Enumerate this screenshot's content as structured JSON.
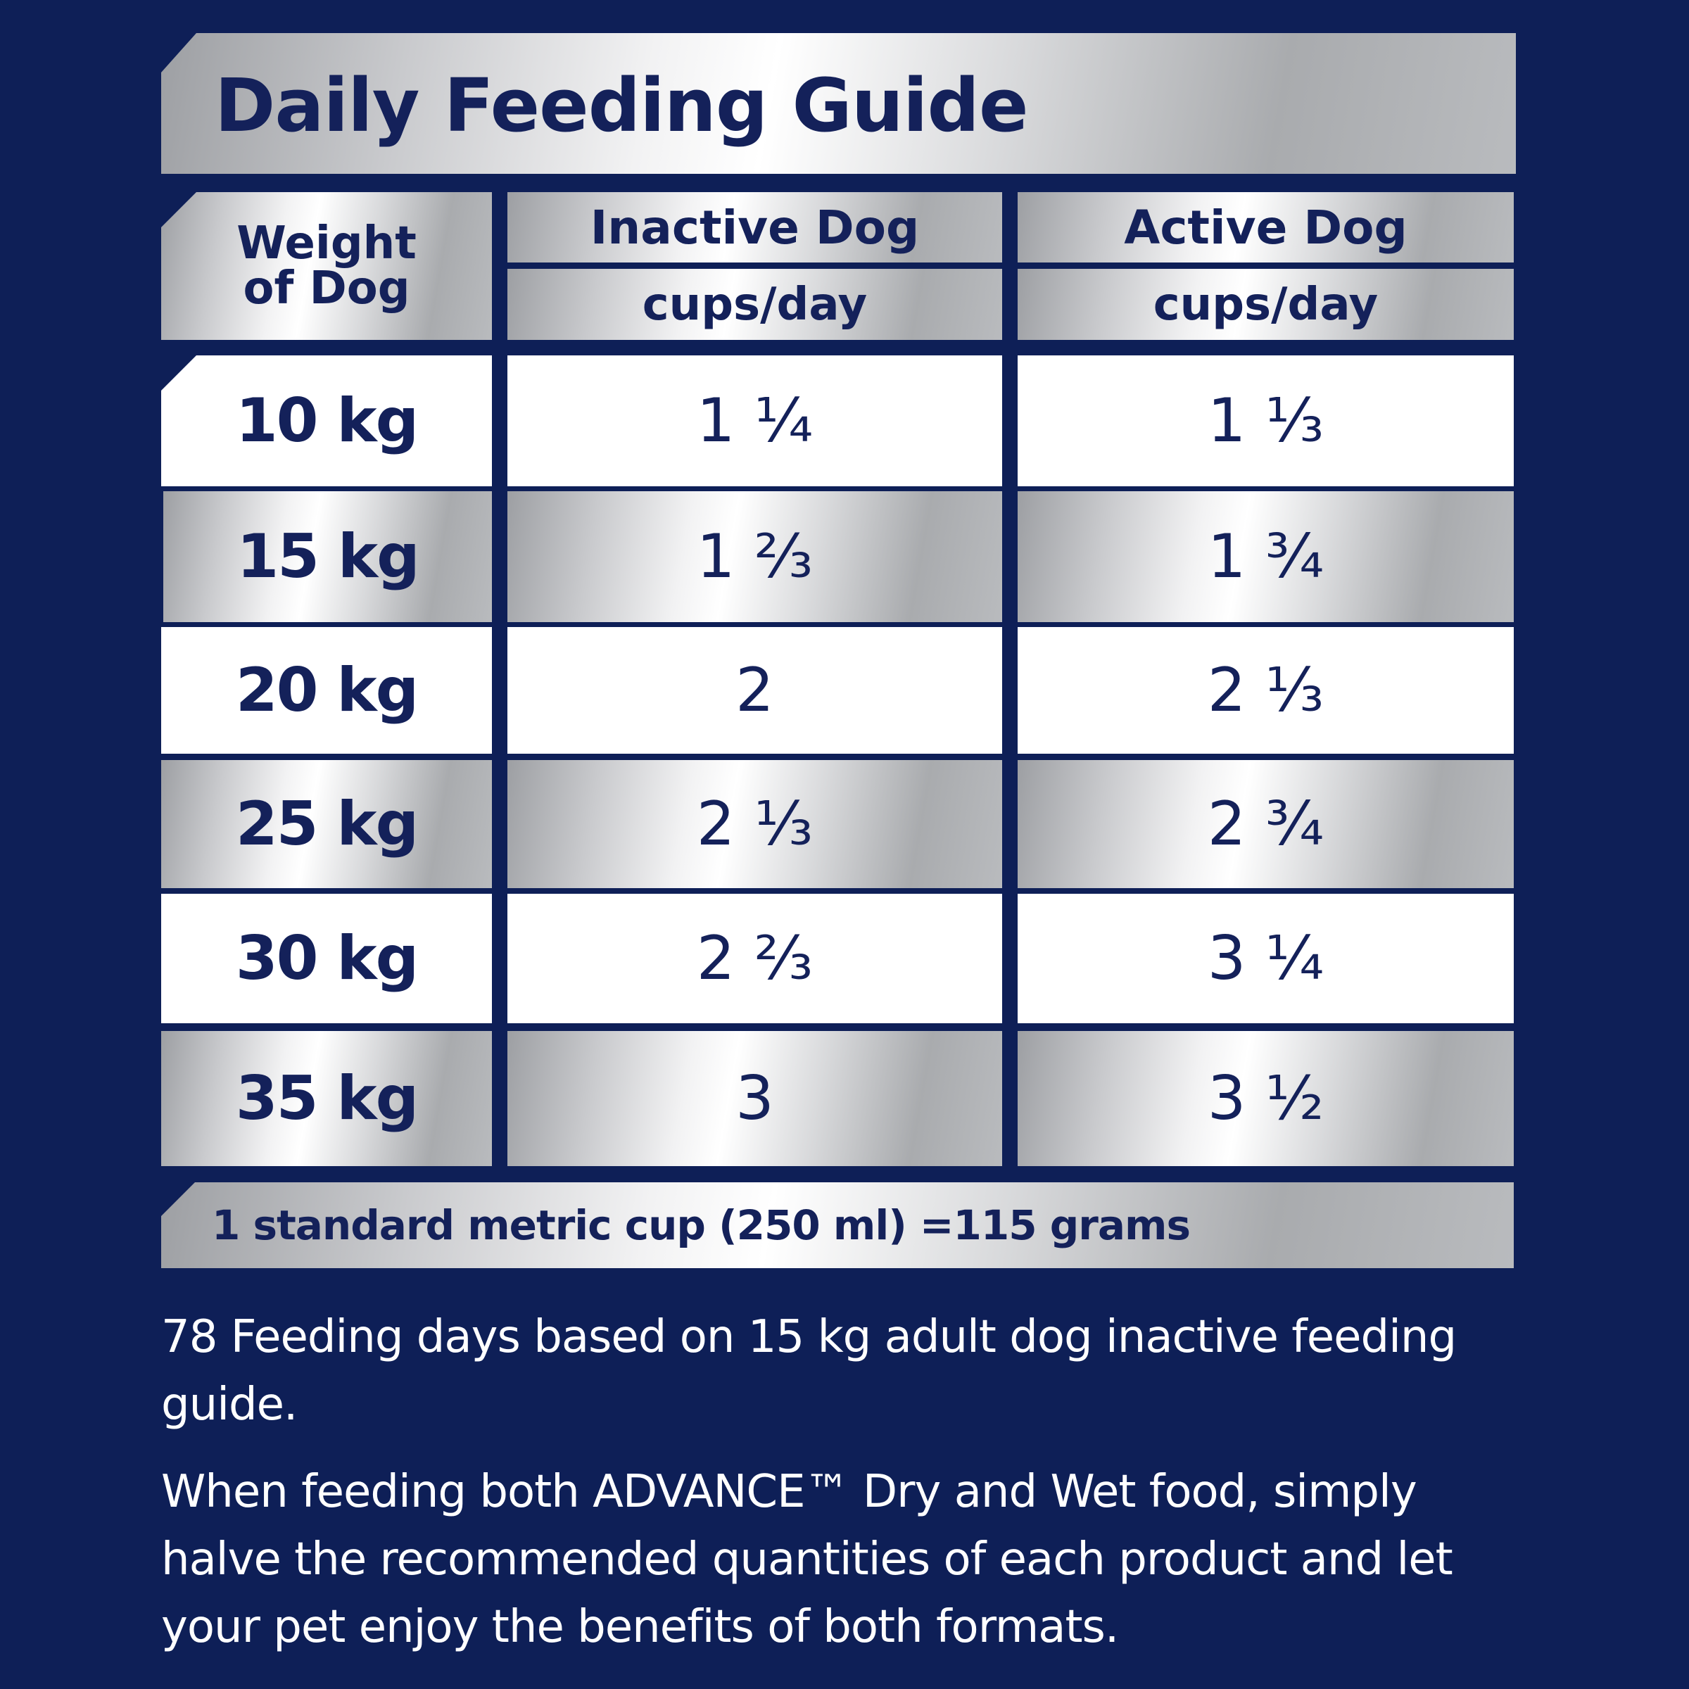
{
  "title": "Daily Feeding Guide",
  "table": {
    "header": {
      "weight_line1": "Weight",
      "weight_line2": "of Dog",
      "inactive": "Inactive Dog",
      "inactive_unit": "cups/day",
      "active": "Active Dog",
      "active_unit": "cups/day"
    },
    "rows": [
      {
        "weight": "10 kg",
        "inactive": "1 ¼",
        "active": "1 ⅓"
      },
      {
        "weight": "15 kg",
        "inactive": "1 ⅔",
        "active": "1 ¾"
      },
      {
        "weight": "20 kg",
        "inactive": "2",
        "active": "2 ⅓"
      },
      {
        "weight": "25 kg",
        "inactive": "2 ⅓",
        "active": "2 ¾"
      },
      {
        "weight": "30 kg",
        "inactive": "2 ⅔",
        "active": "3 ¼"
      },
      {
        "weight": "35 kg",
        "inactive": "3",
        "active": "3 ½"
      }
    ]
  },
  "note": "1 standard metric cup (250 ml) =115 grams",
  "paragraph1": "78 Feeding days based on 15 kg adult dog inactive feeding guide.",
  "paragraph2": "When feeding both ADVANCE™ Dry and Wet food, simply halve the recommended quantities of each product and let your pet enjoy the benefits of both formats.",
  "colors": {
    "background": "#0e1f57",
    "text_dark": "#14215a",
    "text_light": "#ffffff"
  }
}
